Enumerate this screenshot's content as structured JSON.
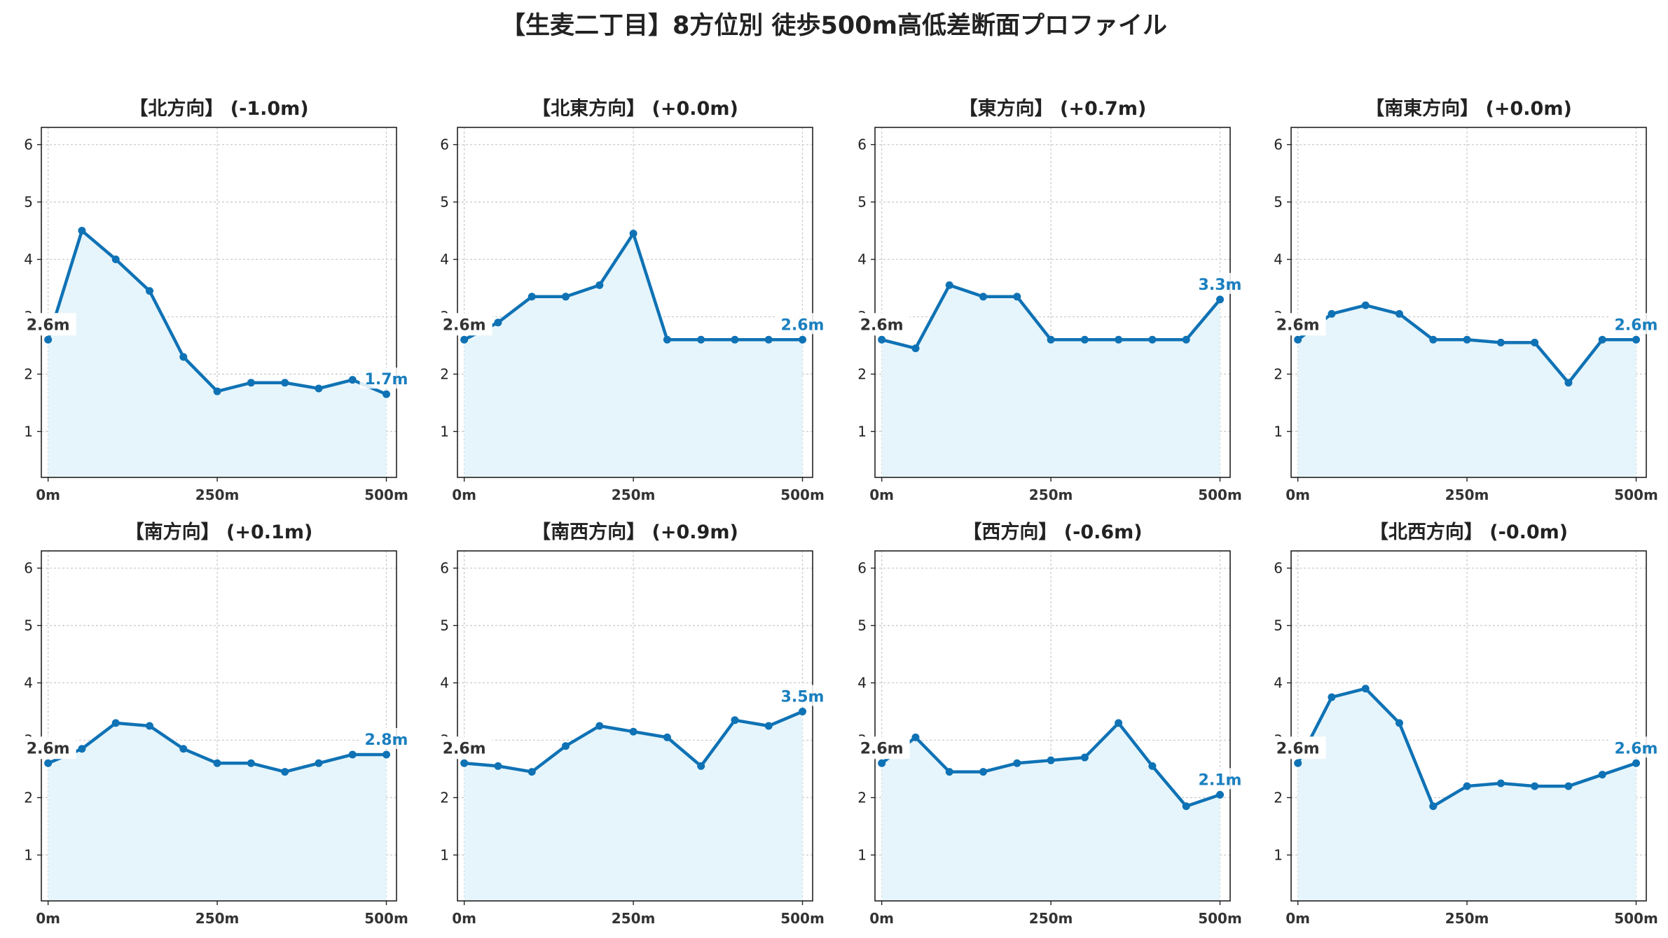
{
  "title": "【生麦二丁目】8方位別 徒歩500m高低差断面プロファイル",
  "colors": {
    "line": "#0f72b5",
    "fill": "#e6f5fb",
    "end_label": "#1a7fbf",
    "grid": "#cccccc"
  },
  "chart_data": [
    {
      "type": "area",
      "title": "【北方向】 (-1.0m)",
      "x": [
        0,
        50,
        100,
        150,
        200,
        250,
        300,
        350,
        400,
        450,
        500
      ],
      "y": [
        2.6,
        4.5,
        4.0,
        3.45,
        2.3,
        1.7,
        1.85,
        1.85,
        1.75,
        1.9,
        1.65
      ],
      "start_label": "2.6m",
      "end_label": "1.7m",
      "xticks": [
        0,
        250,
        500
      ],
      "xtick_labels": [
        "0m",
        "250m",
        "500m"
      ],
      "yticks": [
        1,
        2,
        3,
        4,
        5,
        6
      ],
      "ylim": [
        0.2,
        6.3
      ],
      "xlim": [
        -10,
        515
      ],
      "grid": true
    },
    {
      "type": "area",
      "title": "【北東方向】 (+0.0m)",
      "x": [
        0,
        50,
        100,
        150,
        200,
        250,
        300,
        350,
        400,
        450,
        500
      ],
      "y": [
        2.6,
        2.9,
        3.35,
        3.35,
        3.55,
        4.45,
        2.6,
        2.6,
        2.6,
        2.6,
        2.6
      ],
      "start_label": "2.6m",
      "end_label": "2.6m",
      "xticks": [
        0,
        250,
        500
      ],
      "xtick_labels": [
        "0m",
        "250m",
        "500m"
      ],
      "yticks": [
        1,
        2,
        3,
        4,
        5,
        6
      ],
      "ylim": [
        0.2,
        6.3
      ],
      "xlim": [
        -10,
        515
      ],
      "grid": true
    },
    {
      "type": "area",
      "title": "【東方向】 (+0.7m)",
      "x": [
        0,
        50,
        100,
        150,
        200,
        250,
        300,
        350,
        400,
        450,
        500
      ],
      "y": [
        2.6,
        2.45,
        3.55,
        3.35,
        3.35,
        2.6,
        2.6,
        2.6,
        2.6,
        2.6,
        3.3
      ],
      "start_label": "2.6m",
      "end_label": "3.3m",
      "xticks": [
        0,
        250,
        500
      ],
      "xtick_labels": [
        "0m",
        "250m",
        "500m"
      ],
      "yticks": [
        1,
        2,
        3,
        4,
        5,
        6
      ],
      "ylim": [
        0.2,
        6.3
      ],
      "xlim": [
        -10,
        515
      ],
      "grid": true
    },
    {
      "type": "area",
      "title": "【南東方向】 (+0.0m)",
      "x": [
        0,
        50,
        100,
        150,
        200,
        250,
        300,
        350,
        400,
        450,
        500
      ],
      "y": [
        2.6,
        3.05,
        3.2,
        3.05,
        2.6,
        2.6,
        2.55,
        2.55,
        1.85,
        2.6,
        2.6
      ],
      "start_label": "2.6m",
      "end_label": "2.6m",
      "xticks": [
        0,
        250,
        500
      ],
      "xtick_labels": [
        "0m",
        "250m",
        "500m"
      ],
      "yticks": [
        1,
        2,
        3,
        4,
        5,
        6
      ],
      "ylim": [
        0.2,
        6.3
      ],
      "xlim": [
        -10,
        515
      ],
      "grid": true
    },
    {
      "type": "area",
      "title": "【南方向】 (+0.1m)",
      "x": [
        0,
        50,
        100,
        150,
        200,
        250,
        300,
        350,
        400,
        450,
        500
      ],
      "y": [
        2.6,
        2.85,
        3.3,
        3.25,
        2.85,
        2.6,
        2.6,
        2.45,
        2.6,
        2.75,
        2.75
      ],
      "start_label": "2.6m",
      "end_label": "2.8m",
      "xticks": [
        0,
        250,
        500
      ],
      "xtick_labels": [
        "0m",
        "250m",
        "500m"
      ],
      "yticks": [
        1,
        2,
        3,
        4,
        5,
        6
      ],
      "ylim": [
        0.2,
        6.3
      ],
      "xlim": [
        -10,
        515
      ],
      "grid": true
    },
    {
      "type": "area",
      "title": "【南西方向】 (+0.9m)",
      "x": [
        0,
        50,
        100,
        150,
        200,
        250,
        300,
        350,
        400,
        450,
        500
      ],
      "y": [
        2.6,
        2.55,
        2.45,
        2.9,
        3.25,
        3.15,
        3.05,
        2.55,
        3.35,
        3.25,
        3.5
      ],
      "start_label": "2.6m",
      "end_label": "3.5m",
      "xticks": [
        0,
        250,
        500
      ],
      "xtick_labels": [
        "0m",
        "250m",
        "500m"
      ],
      "yticks": [
        1,
        2,
        3,
        4,
        5,
        6
      ],
      "ylim": [
        0.2,
        6.3
      ],
      "xlim": [
        -10,
        515
      ],
      "grid": true
    },
    {
      "type": "area",
      "title": "【西方向】 (-0.6m)",
      "x": [
        0,
        50,
        100,
        150,
        200,
        250,
        300,
        350,
        400,
        450,
        500
      ],
      "y": [
        2.6,
        3.05,
        2.45,
        2.45,
        2.6,
        2.65,
        2.7,
        3.3,
        2.55,
        1.85,
        2.05
      ],
      "start_label": "2.6m",
      "end_label": "2.1m",
      "xticks": [
        0,
        250,
        500
      ],
      "xtick_labels": [
        "0m",
        "250m",
        "500m"
      ],
      "yticks": [
        1,
        2,
        3,
        4,
        5,
        6
      ],
      "ylim": [
        0.2,
        6.3
      ],
      "xlim": [
        -10,
        515
      ],
      "grid": true
    },
    {
      "type": "area",
      "title": "【北西方向】 (-0.0m)",
      "x": [
        0,
        50,
        100,
        150,
        200,
        250,
        300,
        350,
        400,
        450,
        500
      ],
      "y": [
        2.6,
        3.75,
        3.9,
        3.3,
        1.85,
        2.2,
        2.25,
        2.2,
        2.2,
        2.4,
        2.6
      ],
      "start_label": "2.6m",
      "end_label": "2.6m",
      "xticks": [
        0,
        250,
        500
      ],
      "xtick_labels": [
        "0m",
        "250m",
        "500m"
      ],
      "yticks": [
        1,
        2,
        3,
        4,
        5,
        6
      ],
      "ylim": [
        0.2,
        6.3
      ],
      "xlim": [
        -10,
        515
      ],
      "grid": true
    }
  ]
}
